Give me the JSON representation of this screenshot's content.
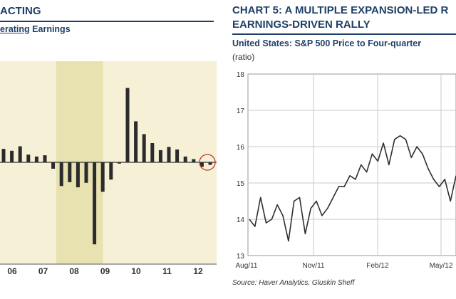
{
  "left": {
    "title": "ACTING",
    "subtitle_underlined": "erating",
    "subtitle_rest": " Earnings"
  },
  "right": {
    "title_line1": "CHART 5: A MULTIPLE EXPANSION-LED R",
    "title_line2": "EARNINGS-DRIVEN RALLY",
    "subtitle": "United States: S&P 500 Price to Four-quarter",
    "unit": "(ratio)",
    "source": "Source: Haver Analytics, Gluskin Sheff"
  },
  "colors": {
    "panel_bg": "#f6f0d7",
    "recession_band": "#e7e2b0",
    "bar": "#2b2b2b",
    "line": "#2f2f2f",
    "circle": "#c03a2b",
    "title": "#1f3f66"
  },
  "chart_data": [
    {
      "type": "bar",
      "x_ticks": [
        "06",
        "07",
        "08",
        "09",
        "10",
        "11",
        "12"
      ],
      "shaded_region": [
        "08",
        "09"
      ],
      "values": [
        2.1,
        1.8,
        2.5,
        1.2,
        0.9,
        1.1,
        -1.0,
        -3.7,
        -3.1,
        -3.9,
        -3.2,
        -12.8,
        -4.6,
        -2.7,
        -0.2,
        11.6,
        6.4,
        4.4,
        3.0,
        1.9,
        2.4,
        2.0,
        0.9,
        0.5,
        -0.7,
        -0.4
      ],
      "baseline": 0,
      "grid": false
    },
    {
      "type": "line",
      "ylabel": "(ratio)",
      "ylim": [
        13,
        18
      ],
      "y_ticks": [
        13,
        14,
        15,
        16,
        17,
        18
      ],
      "x_ticks": [
        "Aug/11",
        "Nov/11",
        "Feb/12",
        "May/12"
      ],
      "grid": true,
      "series": [
        {
          "values": [
            14.0,
            13.8,
            14.6,
            13.9,
            14.0,
            14.4,
            14.1,
            13.4,
            14.5,
            14.6,
            13.6,
            14.3,
            14.5,
            14.1,
            14.3,
            14.6,
            14.9,
            14.9,
            15.2,
            15.1,
            15.5,
            15.3,
            15.8,
            15.6,
            16.1,
            15.5,
            16.2,
            16.3,
            16.2,
            15.7,
            16.0,
            15.8,
            15.4,
            15.1,
            14.9,
            15.1,
            14.5,
            15.2
          ]
        }
      ]
    }
  ]
}
